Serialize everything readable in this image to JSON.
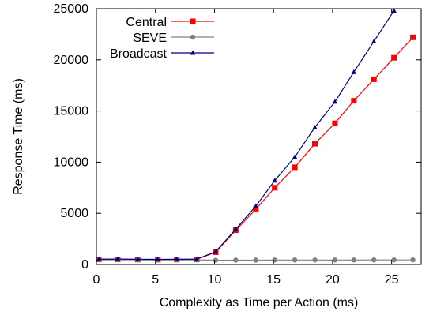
{
  "chart_data": {
    "type": "line",
    "xlabel": "Complexity as Time per Action (ms)",
    "ylabel": "Response Time (ms)",
    "xlim": [
      0,
      27.5
    ],
    "ylim": [
      0,
      25000
    ],
    "x_ticks": [
      "0",
      "5",
      "10",
      "15",
      "20",
      "25"
    ],
    "y_ticks": [
      "0",
      "5000",
      "10000",
      "15000",
      "20000",
      "25000"
    ],
    "legend_position": "top-left",
    "grid": false,
    "series": [
      {
        "name": "Central",
        "color": "#ff0000",
        "marker": "square",
        "x": [
          0.2,
          1.8,
          3.5,
          5.2,
          6.8,
          8.5,
          10.1,
          11.8,
          13.5,
          15.1,
          16.8,
          18.5,
          20.2,
          21.8,
          23.5,
          25.2,
          26.8
        ],
        "y": [
          500,
          500,
          490,
          480,
          490,
          500,
          1200,
          3350,
          5400,
          7500,
          9500,
          11800,
          13800,
          16000,
          18100,
          20200,
          22200
        ]
      },
      {
        "name": "SEVE",
        "color": "#808080",
        "marker": "circle",
        "x": [
          0.2,
          1.8,
          3.5,
          5.2,
          6.8,
          8.5,
          10.1,
          11.8,
          13.5,
          15.1,
          16.8,
          18.5,
          20.2,
          21.8,
          23.5,
          25.2,
          26.8
        ],
        "y": [
          450,
          460,
          450,
          440,
          450,
          450,
          420,
          430,
          430,
          440,
          440,
          440,
          440,
          440,
          450,
          450,
          450
        ]
      },
      {
        "name": "Broadcast",
        "color": "#000080",
        "marker": "triangle",
        "x": [
          0.2,
          1.8,
          3.5,
          5.2,
          6.8,
          8.5,
          10.1,
          11.8,
          13.5,
          15.1,
          16.8,
          18.5,
          20.2,
          21.8,
          23.5,
          25.2
        ],
        "y": [
          520,
          530,
          510,
          500,
          510,
          520,
          1250,
          3450,
          5700,
          8200,
          10500,
          13400,
          15900,
          18800,
          21800,
          24800
        ]
      }
    ]
  }
}
